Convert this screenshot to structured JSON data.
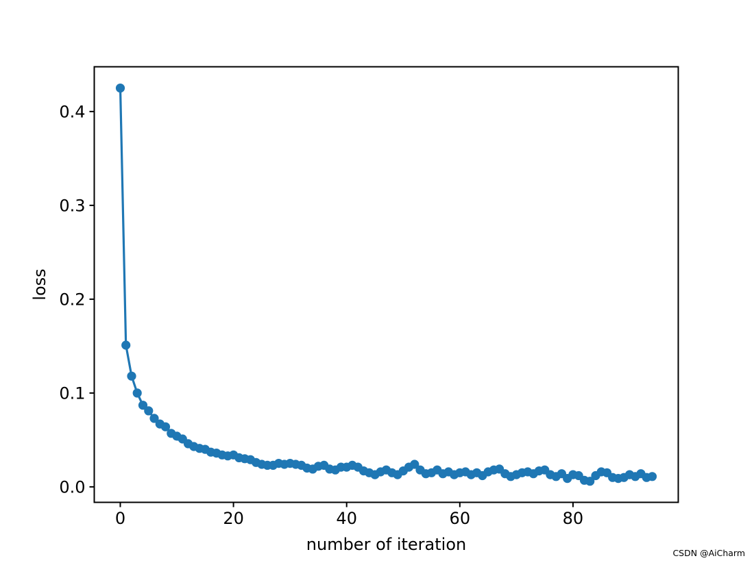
{
  "chart_data": {
    "type": "line",
    "title": "",
    "xlabel": "number of iteration",
    "ylabel": "loss",
    "grid": false,
    "legend": "none",
    "background_color": "#ffffff",
    "spine_color": "#000000",
    "xlim": [
      -4.6,
      98.6
    ],
    "ylim": [
      -0.0165,
      0.4477
    ],
    "xticks": {
      "values": [
        0,
        20,
        40,
        60,
        80
      ],
      "labels": [
        "0",
        "20",
        "40",
        "60",
        "80"
      ]
    },
    "yticks": {
      "values": [
        0.0,
        0.1,
        0.2,
        0.3,
        0.4
      ],
      "labels": [
        "0.0",
        "0.1",
        "0.2",
        "0.3",
        "0.4"
      ]
    },
    "series": [
      {
        "name": "loss",
        "color": "#1f77b4",
        "marker": "circle",
        "marker_radius": 6.6,
        "line_width": 3.2,
        "x": [
          0,
          1,
          2,
          3,
          4,
          5,
          6,
          7,
          8,
          9,
          10,
          11,
          12,
          13,
          14,
          15,
          16,
          17,
          18,
          19,
          20,
          21,
          22,
          23,
          24,
          25,
          26,
          27,
          28,
          29,
          30,
          31,
          32,
          33,
          34,
          35,
          36,
          37,
          38,
          39,
          40,
          41,
          42,
          43,
          44,
          45,
          46,
          47,
          48,
          49,
          50,
          51,
          52,
          53,
          54,
          55,
          56,
          57,
          58,
          59,
          60,
          61,
          62,
          63,
          64,
          65,
          66,
          67,
          68,
          69,
          70,
          71,
          72,
          73,
          74,
          75,
          76,
          77,
          78,
          79,
          80,
          81,
          82,
          83,
          84,
          85,
          86,
          87,
          88,
          89,
          90,
          91,
          92,
          93,
          94
        ],
        "y": [
          0.425,
          0.151,
          0.118,
          0.1,
          0.087,
          0.081,
          0.073,
          0.067,
          0.064,
          0.057,
          0.054,
          0.051,
          0.046,
          0.043,
          0.041,
          0.04,
          0.037,
          0.036,
          0.034,
          0.033,
          0.034,
          0.031,
          0.03,
          0.029,
          0.026,
          0.024,
          0.023,
          0.023,
          0.025,
          0.024,
          0.025,
          0.024,
          0.023,
          0.02,
          0.019,
          0.022,
          0.023,
          0.019,
          0.018,
          0.021,
          0.021,
          0.023,
          0.021,
          0.017,
          0.015,
          0.013,
          0.016,
          0.018,
          0.015,
          0.013,
          0.017,
          0.021,
          0.024,
          0.018,
          0.014,
          0.015,
          0.018,
          0.014,
          0.016,
          0.013,
          0.015,
          0.016,
          0.013,
          0.015,
          0.012,
          0.016,
          0.018,
          0.019,
          0.014,
          0.011,
          0.013,
          0.015,
          0.016,
          0.014,
          0.017,
          0.018,
          0.013,
          0.011,
          0.014,
          0.009,
          0.013,
          0.012,
          0.007,
          0.006,
          0.012,
          0.016,
          0.015,
          0.01,
          0.009,
          0.01,
          0.013,
          0.011,
          0.014,
          0.01,
          0.011
        ]
      }
    ]
  },
  "watermark": {
    "text": "CSDN @AiCharm",
    "color": "#b0b5ba"
  }
}
